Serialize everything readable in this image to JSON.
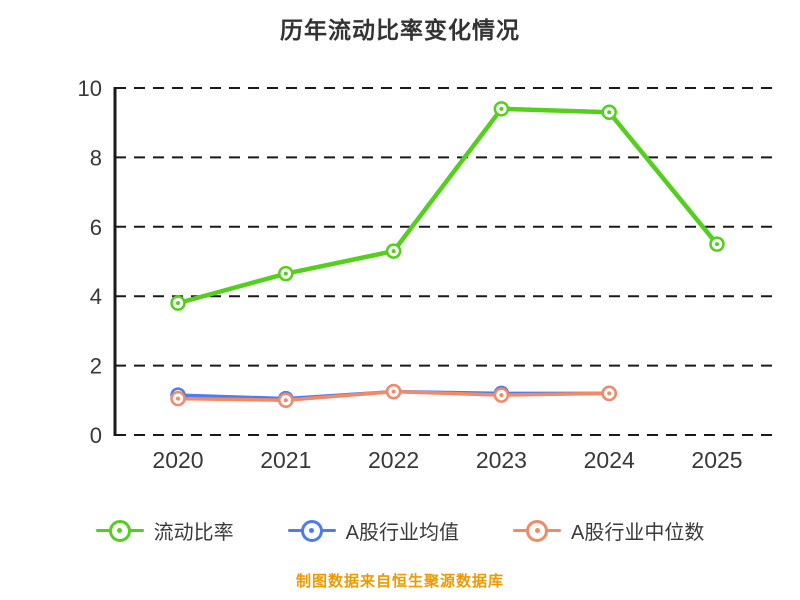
{
  "chart_data": {
    "type": "line",
    "title": "历年流动比率变化情况",
    "source_note": "制图数据来自恒生聚源数据库",
    "x": [
      2020,
      2021,
      2022,
      2023,
      2024,
      2025
    ],
    "ylim": [
      0,
      10
    ],
    "yticks": [
      0,
      2,
      4,
      6,
      8,
      10
    ],
    "grid": "horizontal-dashed",
    "legend_position": "bottom",
    "series": [
      {
        "name": "流动比率",
        "color": "#55CF1E",
        "values": [
          3.8,
          4.65,
          5.3,
          9.4,
          9.3,
          5.5
        ]
      },
      {
        "name": "A股行业均值",
        "color": "#4E7CEF",
        "values": [
          1.15,
          1.05,
          1.25,
          1.2,
          1.2,
          null
        ]
      },
      {
        "name": "A股行业中位数",
        "color": "#F28A68",
        "values": [
          1.05,
          1.0,
          1.25,
          1.15,
          1.2,
          null
        ]
      }
    ],
    "axis_color": "#1a1a1a",
    "label_color": "#383838"
  }
}
